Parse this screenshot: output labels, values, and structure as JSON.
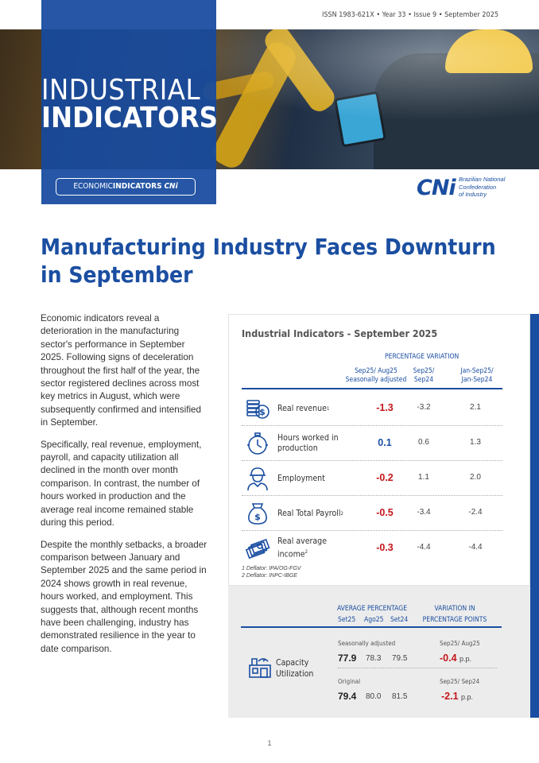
{
  "header": {
    "issn": "ISSN 1983-621X • Year 33 • Issue 9 • September 2025",
    "title_line1": "INDUSTRIAL",
    "title_line2": "INDICATORS",
    "pill_left": "ECONOMIC",
    "pill_bold": "INDICATORS",
    "pill_brand": "CNi",
    "logo_text": "CNi",
    "logo_tag_1": "Brazilian National",
    "logo_tag_2": "Confederation",
    "logo_tag_3": "of Industry"
  },
  "headline": "Manufacturing Industry Faces Downturn in September",
  "body": [
    "Economic indicators reveal a deterioration in the manufacturing sector's performance in September 2025. Following signs of deceleration throughout the first half of the year, the sector registered declines across most key metrics in August, which were subsequently confirmed and intensified in September.",
    "Specifically, real revenue, employment, payroll, and capacity utilization all declined in the month over month comparison. In contrast, the number of hours worked in production and the average real income remained stable during this period.",
    "Despite the monthly setbacks, a broader comparison between January and September 2025 and the same period in 2024 shows growth in real revenue, hours worked, and employment. This suggests that, although recent months have been challenging, industry has demonstrated resilience in the year to date comparison."
  ],
  "panel": {
    "title": "Industrial Indicators - September 2025",
    "pct_variation": "PERCENTAGE VARIATION",
    "col1_line1": "Sep25/ Aug25",
    "col1_line2": "Seasonally adjusted",
    "col2_line1": "Sep25/",
    "col2_line2": "Sep24",
    "col3_line1": "Jan-Sep25/",
    "col3_line2": "Jan-Sep24",
    "rows": [
      {
        "label": "Real revenue",
        "sup": "1",
        "v1": "-1.3",
        "v2": "-3.2",
        "v3": "2.1",
        "icon": "coins-icon"
      },
      {
        "label": "Hours worked in production",
        "sup": "",
        "v1": "0.1",
        "v2": "0.6",
        "v3": "1.3",
        "icon": "stopwatch-icon"
      },
      {
        "label": "Employment",
        "sup": "",
        "v1": "-0.2",
        "v2": "1.1",
        "v3": "2.0",
        "icon": "worker-icon"
      },
      {
        "label": "Real Total Payroll",
        "sup": "2",
        "v1": "-0.5",
        "v2": "-3.4",
        "v3": "-2.4",
        "icon": "money-bag-icon"
      },
      {
        "label": "Real average income",
        "sup": "2",
        "v1": "-0.3",
        "v2": "-4.4",
        "v3": "-4.4",
        "icon": "cash-stack-icon"
      }
    ],
    "footnote1": "1 Deflator: IPA/OG-FGV",
    "footnote2": "2 Deflator: INPC-IBGE",
    "capacity": {
      "avg_pct": "AVERAGE PERCENTAGE",
      "var_pp_1": "VARIATION IN",
      "var_pp_2": "PERCENTAGE POINTS",
      "h_set25": "Set25",
      "h_ago25": "Ago25",
      "h_set24": "Set24",
      "label_1": "Capacity",
      "label_2": "Utilization",
      "seasonal_label": "Seasonally adjusted",
      "seasonal_cmp": "Sep25/ Aug25",
      "s_set25": "77.9",
      "s_ago25": "78.3",
      "s_set24": "79.5",
      "s_pp": "-0.4",
      "original_label": "Original",
      "original_cmp": "Sep25/ Sep24",
      "o_set25": "79.4",
      "o_ago25": "80.0",
      "o_set24": "81.5",
      "o_pp": "-2.1",
      "pp_unit": "p.p."
    }
  },
  "page_number": "1",
  "colors": {
    "brand_blue": "#1a4ea1",
    "negative_red": "#c4161c"
  }
}
